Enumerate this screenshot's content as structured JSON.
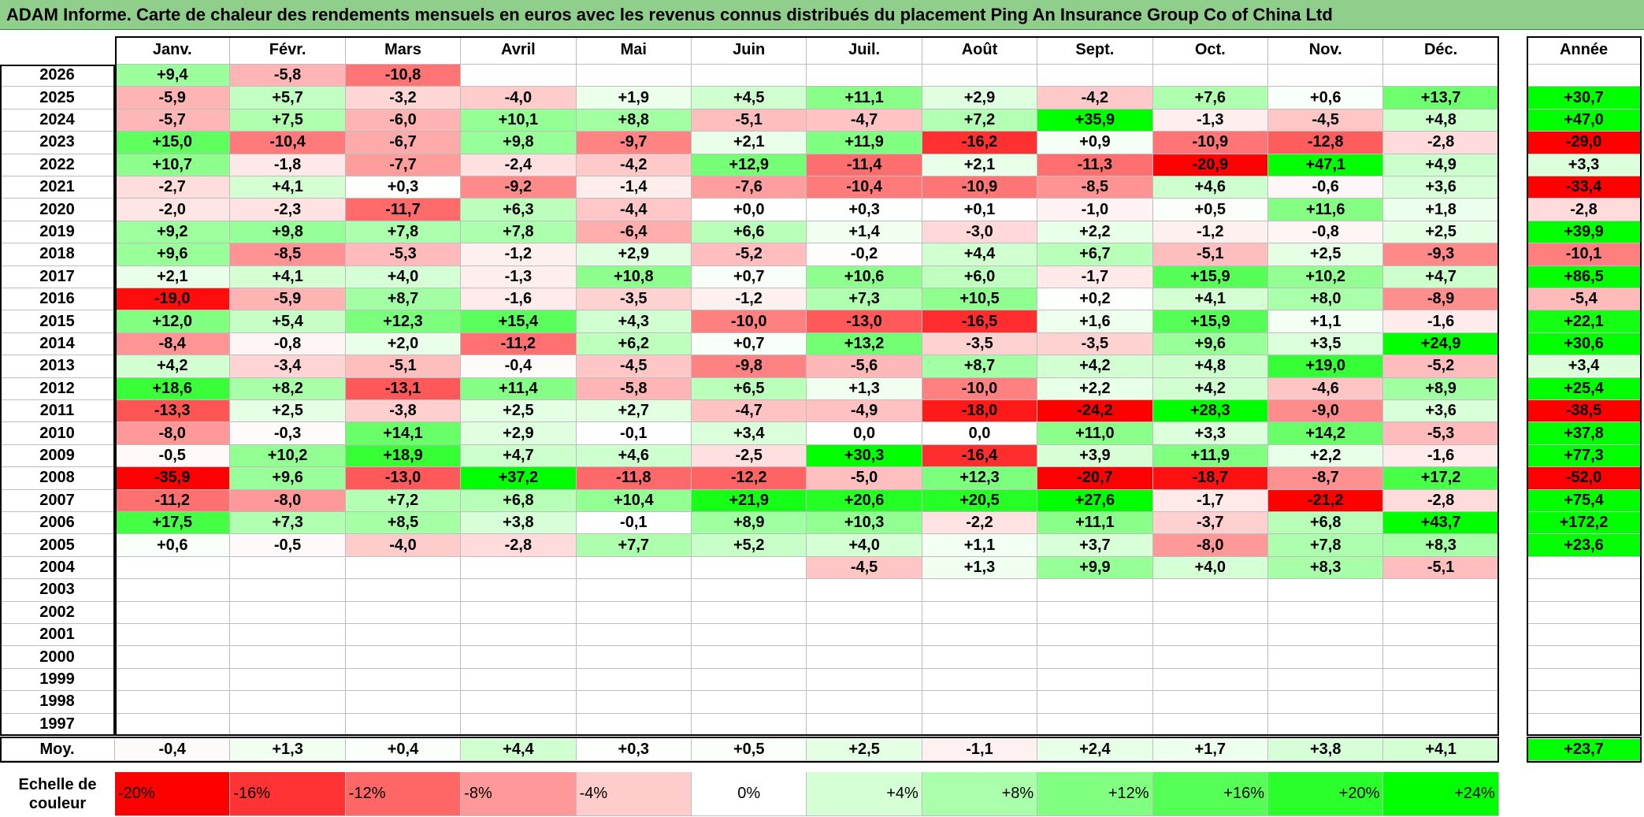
{
  "title": "ADAM Informe. Carte de chaleur des rendements mensuels en euros avec les revenus connus distribués du placement Ping An Insurance Group Co of China Ltd",
  "chart_data": {
    "type": "heatmap",
    "title": "ADAM Informe. Carte de chaleur des rendements mensuels en euros avec les revenus connus distribués du placement Ping An Insurance Group Co of China Ltd",
    "months": [
      "Janv.",
      "Févr.",
      "Mars",
      "Avril",
      "Mai",
      "Juin",
      "Juil.",
      "Août",
      "Sept.",
      "Oct.",
      "Nov.",
      "Déc."
    ],
    "year_column_label": "Année",
    "rows": [
      {
        "year": "2026",
        "values": [
          "+9,4",
          "-5,8",
          "-10,8",
          "",
          "",
          "",
          "",
          "",
          "",
          "",
          "",
          ""
        ],
        "annual": ""
      },
      {
        "year": "2025",
        "values": [
          "-5,9",
          "+5,7",
          "-3,2",
          "-4,0",
          "+1,9",
          "+4,5",
          "+11,1",
          "+2,9",
          "-4,2",
          "+7,6",
          "+0,6",
          "+13,7"
        ],
        "annual": "+30,7"
      },
      {
        "year": "2024",
        "values": [
          "-5,7",
          "+7,5",
          "-6,0",
          "+10,1",
          "+8,8",
          "-5,1",
          "-4,7",
          "+7,2",
          "+35,9",
          "-1,3",
          "-4,5",
          "+4,8"
        ],
        "annual": "+47,0"
      },
      {
        "year": "2023",
        "values": [
          "+15,0",
          "-10,4",
          "-6,7",
          "+9,8",
          "-9,7",
          "+2,1",
          "+11,9",
          "-16,2",
          "+0,9",
          "-10,9",
          "-12,8",
          "-2,8"
        ],
        "annual": "-29,0"
      },
      {
        "year": "2022",
        "values": [
          "+10,7",
          "-1,8",
          "-7,7",
          "-2,4",
          "-4,2",
          "+12,9",
          "-11,4",
          "+2,1",
          "-11,3",
          "-20,9",
          "+47,1",
          "+4,9"
        ],
        "annual": "+3,3"
      },
      {
        "year": "2021",
        "values": [
          "-2,7",
          "+4,1",
          "+0,3",
          "-9,2",
          "-1,4",
          "-7,6",
          "-10,4",
          "-10,9",
          "-8,5",
          "+4,6",
          "-0,6",
          "+3,6"
        ],
        "annual": "-33,4"
      },
      {
        "year": "2020",
        "values": [
          "-2,0",
          "-2,3",
          "-11,7",
          "+6,3",
          "-4,4",
          "+0,0",
          "+0,3",
          "+0,1",
          "-1,0",
          "+0,5",
          "+11,6",
          "+1,8"
        ],
        "annual": "-2,8"
      },
      {
        "year": "2019",
        "values": [
          "+9,2",
          "+9,8",
          "+7,8",
          "+7,8",
          "-6,4",
          "+6,6",
          "+1,4",
          "-3,0",
          "+2,2",
          "-1,2",
          "-0,8",
          "+2,5"
        ],
        "annual": "+39,9"
      },
      {
        "year": "2018",
        "values": [
          "+9,6",
          "-8,5",
          "-5,3",
          "-1,2",
          "+2,9",
          "-5,2",
          "-0,2",
          "+4,4",
          "+6,7",
          "-5,1",
          "+2,5",
          "-9,3"
        ],
        "annual": "-10,1"
      },
      {
        "year": "2017",
        "values": [
          "+2,1",
          "+4,1",
          "+4,0",
          "-1,3",
          "+10,8",
          "+0,7",
          "+10,6",
          "+6,0",
          "-1,7",
          "+15,9",
          "+10,2",
          "+4,7"
        ],
        "annual": "+86,5"
      },
      {
        "year": "2016",
        "values": [
          "-19,0",
          "-5,9",
          "+8,7",
          "-1,6",
          "-3,5",
          "-1,2",
          "+7,3",
          "+10,5",
          "+0,2",
          "+4,1",
          "+8,0",
          "-8,9"
        ],
        "annual": "-5,4"
      },
      {
        "year": "2015",
        "values": [
          "+12,0",
          "+5,4",
          "+12,3",
          "+15,4",
          "+4,3",
          "-10,0",
          "-13,0",
          "-16,5",
          "+1,6",
          "+15,9",
          "+1,1",
          "-1,6"
        ],
        "annual": "+22,1"
      },
      {
        "year": "2014",
        "values": [
          "-8,4",
          "-0,8",
          "+2,0",
          "-11,2",
          "+6,2",
          "+0,7",
          "+13,2",
          "-3,5",
          "-3,5",
          "+9,6",
          "+3,5",
          "+24,9"
        ],
        "annual": "+30,6"
      },
      {
        "year": "2013",
        "values": [
          "+4,2",
          "-3,4",
          "-5,1",
          "-0,4",
          "-4,5",
          "-9,8",
          "-5,6",
          "+8,7",
          "+4,2",
          "+4,8",
          "+19,0",
          "-5,2"
        ],
        "annual": "+3,4"
      },
      {
        "year": "2012",
        "values": [
          "+18,6",
          "+8,2",
          "-13,1",
          "+11,4",
          "-5,8",
          "+6,5",
          "+1,3",
          "-10,0",
          "+2,2",
          "+4,2",
          "-4,6",
          "+8,9"
        ],
        "annual": "+25,4"
      },
      {
        "year": "2011",
        "values": [
          "-13,3",
          "+2,5",
          "-3,8",
          "+2,5",
          "+2,7",
          "-4,7",
          "-4,9",
          "-18,0",
          "-24,2",
          "+28,3",
          "-9,0",
          "+3,6"
        ],
        "annual": "-38,5"
      },
      {
        "year": "2010",
        "values": [
          "-8,0",
          "-0,3",
          "+14,1",
          "+2,9",
          "-0,1",
          "+3,4",
          "0,0",
          "0,0",
          "+11,0",
          "+3,3",
          "+14,2",
          "-5,3"
        ],
        "annual": "+37,8"
      },
      {
        "year": "2009",
        "values": [
          "-0,5",
          "+10,2",
          "+18,9",
          "+4,7",
          "+4,6",
          "-2,5",
          "+30,3",
          "-16,4",
          "+3,9",
          "+11,9",
          "+2,2",
          "-1,6"
        ],
        "annual": "+77,3"
      },
      {
        "year": "2008",
        "values": [
          "-35,9",
          "+9,6",
          "-13,0",
          "+37,2",
          "-11,8",
          "-12,2",
          "-5,0",
          "+12,3",
          "-20,7",
          "-18,7",
          "-8,7",
          "+17,2"
        ],
        "annual": "-52,0"
      },
      {
        "year": "2007",
        "values": [
          "-11,2",
          "-8,0",
          "+7,2",
          "+6,8",
          "+10,4",
          "+21,9",
          "+20,6",
          "+20,5",
          "+27,6",
          "-1,7",
          "-21,2",
          "-2,8"
        ],
        "annual": "+75,4"
      },
      {
        "year": "2006",
        "values": [
          "+17,5",
          "+7,3",
          "+8,5",
          "+3,8",
          "-0,1",
          "+8,9",
          "+10,3",
          "-2,2",
          "+11,1",
          "-3,7",
          "+6,8",
          "+43,7"
        ],
        "annual": "+172,2"
      },
      {
        "year": "2005",
        "values": [
          "+0,6",
          "-0,5",
          "-4,0",
          "-2,8",
          "+7,7",
          "+5,2",
          "+4,0",
          "+1,1",
          "+3,7",
          "-8,0",
          "+7,8",
          "+8,3"
        ],
        "annual": "+23,6"
      },
      {
        "year": "2004",
        "values": [
          "",
          "",
          "",
          "",
          "",
          "",
          "-4,5",
          "+1,3",
          "+9,9",
          "+4,0",
          "+8,3",
          "-5,1"
        ],
        "annual": ""
      },
      {
        "year": "2003",
        "values": [
          "",
          "",
          "",
          "",
          "",
          "",
          "",
          "",
          "",
          "",
          "",
          ""
        ],
        "annual": ""
      },
      {
        "year": "2002",
        "values": [
          "",
          "",
          "",
          "",
          "",
          "",
          "",
          "",
          "",
          "",
          "",
          ""
        ],
        "annual": ""
      },
      {
        "year": "2001",
        "values": [
          "",
          "",
          "",
          "",
          "",
          "",
          "",
          "",
          "",
          "",
          "",
          ""
        ],
        "annual": ""
      },
      {
        "year": "2000",
        "values": [
          "",
          "",
          "",
          "",
          "",
          "",
          "",
          "",
          "",
          "",
          "",
          ""
        ],
        "annual": ""
      },
      {
        "year": "1999",
        "values": [
          "",
          "",
          "",
          "",
          "",
          "",
          "",
          "",
          "",
          "",
          "",
          ""
        ],
        "annual": ""
      },
      {
        "year": "1998",
        "values": [
          "",
          "",
          "",
          "",
          "",
          "",
          "",
          "",
          "",
          "",
          "",
          ""
        ],
        "annual": ""
      },
      {
        "year": "1997",
        "values": [
          "",
          "",
          "",
          "",
          "",
          "",
          "",
          "",
          "",
          "",
          "",
          ""
        ],
        "annual": ""
      }
    ],
    "average": {
      "label": "Moy.",
      "values": [
        "-0,4",
        "+1,3",
        "+0,4",
        "+4,4",
        "+0,3",
        "+0,5",
        "+2,5",
        "-1,1",
        "+2,4",
        "+1,7",
        "+3,8",
        "+4,1"
      ],
      "annual": "+23,7"
    },
    "color_scale": {
      "label": "Echelle de couleur",
      "stops": [
        "-20%",
        "-16%",
        "-12%",
        "-8%",
        "-4%",
        "0%",
        "+4%",
        "+8%",
        "+12%",
        "+16%",
        "+20%",
        "+24%"
      ],
      "stop_values": [
        -20,
        -16,
        -12,
        -8,
        -4,
        0,
        4,
        8,
        12,
        16,
        20,
        24
      ],
      "negative_color": "#ff0000",
      "neutral_color": "#ffffff",
      "positive_color": "#00ff00"
    }
  }
}
